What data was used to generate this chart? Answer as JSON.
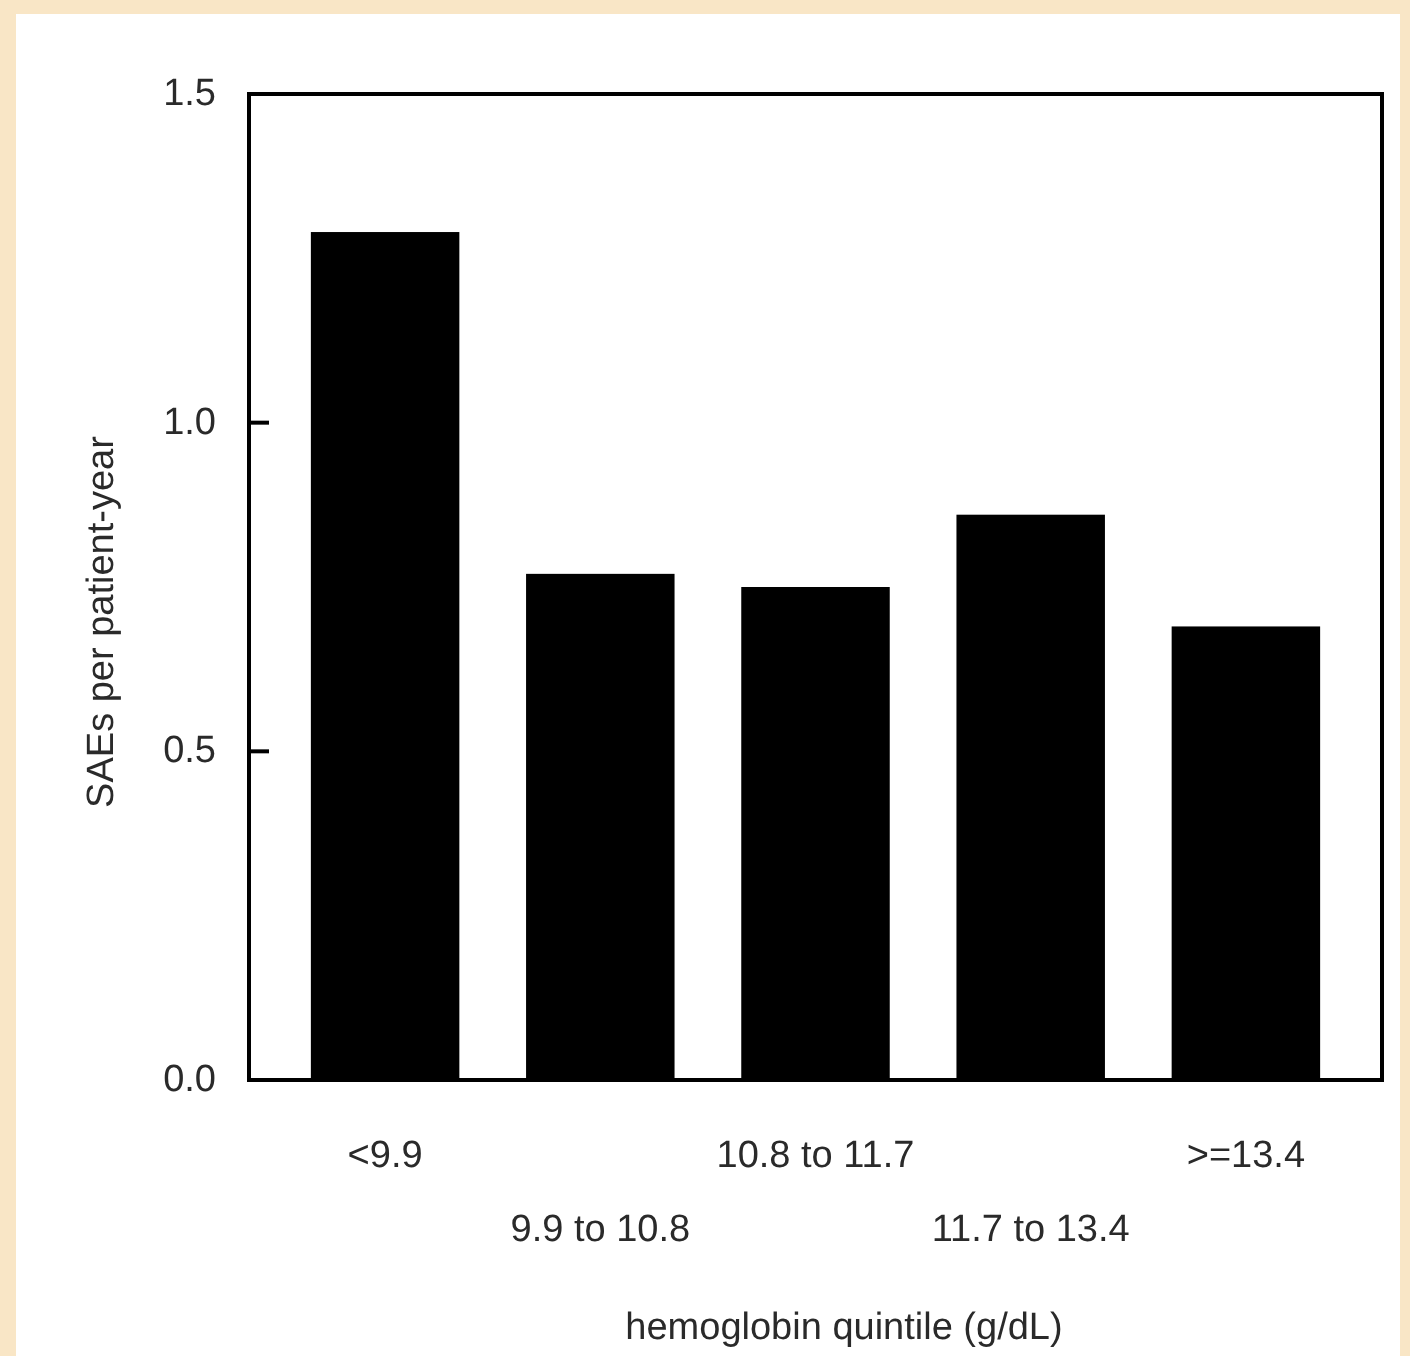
{
  "chart_data": {
    "type": "bar",
    "xlabel": "hemoglobin quintile (g/dL)",
    "ylabel": "SAEs per patient-year",
    "categories": [
      "<9.9",
      "9.9 to 10.8",
      "10.8 to 11.7",
      "11.7 to 13.4",
      ">=13.4"
    ],
    "values": [
      1.29,
      0.77,
      0.75,
      0.86,
      0.69
    ],
    "color": "#000000",
    "ylim": [
      0,
      1.5
    ],
    "yticks": [
      {
        "value": 0,
        "label": "0.0"
      },
      {
        "value": 0.5,
        "label": "0.5"
      },
      {
        "value": 1,
        "label": "1.0"
      },
      {
        "value": 1.5,
        "label": "1.5"
      }
    ]
  }
}
